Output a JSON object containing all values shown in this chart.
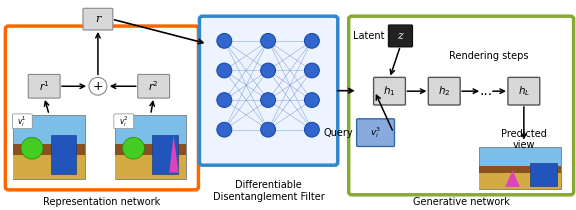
{
  "rep_box_color": "#FF6600",
  "ddf_box_color": "#3388CC",
  "gen_box_color": "#88AA33",
  "node_color": "#3366CC",
  "node_edge": "#1144AA",
  "box_fill": "#D8D8D8",
  "box_edge": "#888888",
  "label_rep": "Representation network",
  "label_ddf": "Differentiable\nDisentanglement Filter",
  "label_gen": "Generative network",
  "sky_color": "#7BBFE8",
  "ground_color": "#D4AA44",
  "terrain_color": "#8B5020",
  "ball_color": "#44CC22",
  "blue_box_color": "#2255BB",
  "pink_color": "#DD44BB",
  "query_fill": "#88AADD",
  "query_edge": "#3366AA",
  "z_fill": "#222222"
}
